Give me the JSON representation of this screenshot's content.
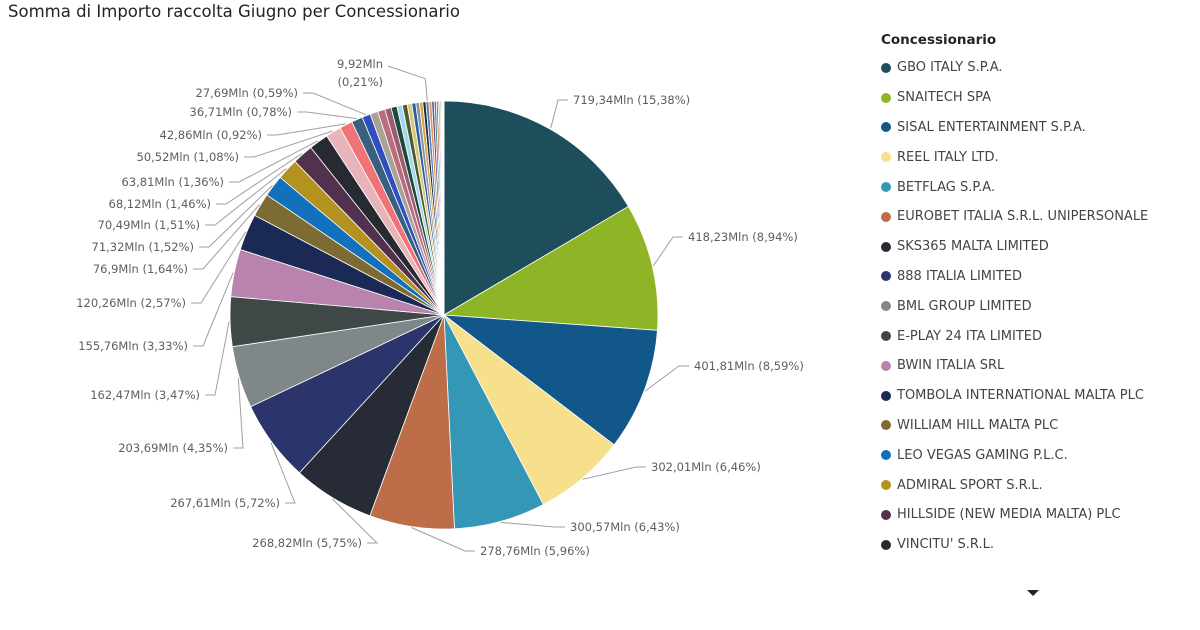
{
  "chart_data": {
    "type": "pie",
    "title": "Somma di Importo raccolta Giugno per Concessionario",
    "legend_title": "Concessionario",
    "legend_position": "right",
    "slices": [
      {
        "name": "GBO ITALY S.P.A.",
        "value": 719.34,
        "label": "719,34Mln (15,38%)",
        "color": "#1e4e5c"
      },
      {
        "name": "SNAITECH SPA",
        "value": 418.23,
        "label": "418,23Mln (8,94%)",
        "color": "#8db525"
      },
      {
        "name": "SISAL ENTERTAINMENT S.P.A.",
        "value": 401.81,
        "label": "401,81Mln (8,59%)",
        "color": "#12578a"
      },
      {
        "name": "REEL ITALY LTD.",
        "value": 302.01,
        "label": "302,01Mln (6,46%)",
        "color": "#f7e08c"
      },
      {
        "name": "BETFLAG S.P.A.",
        "value": 300.57,
        "label": "300,57Mln (6,43%)",
        "color": "#3597b6"
      },
      {
        "name": "EUROBET ITALIA S.R.L. UNIPERSONALE",
        "value": 278.76,
        "label": "278,76Mln (5,96%)",
        "color": "#bd6d48"
      },
      {
        "name": "SKS365 MALTA LIMITED",
        "value": 268.82,
        "label": "268,82Mln (5,75%)",
        "color": "#262b36"
      },
      {
        "name": "888 ITALIA LIMITED",
        "value": 267.61,
        "label": "267,61Mln (5,72%)",
        "color": "#2c346c"
      },
      {
        "name": "BML GROUP LIMITED",
        "value": 203.69,
        "label": "203,69Mln (4,35%)",
        "color": "#7f8789"
      },
      {
        "name": "E-PLAY 24 ITA LIMITED",
        "value": 162.47,
        "label": "162,47Mln (3,47%)",
        "color": "#3f4847"
      },
      {
        "name": "BWIN ITALIA SRL",
        "value": 155.76,
        "label": "155,76Mln (3,33%)",
        "color": "#b883ac"
      },
      {
        "name": "TOMBOLA INTERNATIONAL MALTA PLC",
        "value": 120.26,
        "label": "120,26Mln (2,57%)",
        "color": "#1b2a55"
      },
      {
        "name": "WILLIAM HILL MALTA PLC",
        "value": 76.9,
        "label": "76,9Mln (1,64%)",
        "color": "#7c6c33"
      },
      {
        "name": "LEO VEGAS GAMING P.L.C.",
        "value": 71.32,
        "label": "71,32Mln (1,52%)",
        "color": "#1270bd"
      },
      {
        "name": "ADMIRAL SPORT S.R.L.",
        "value": 70.49,
        "label": "70,49Mln (1,51%)",
        "color": "#b3921f"
      },
      {
        "name": "HILLSIDE (NEW MEDIA MALTA) PLC",
        "value": 68.12,
        "label": "68,12Mln (1,46%)",
        "color": "#52314f"
      },
      {
        "name": "VINCITU' S.R.L.",
        "value": 63.81,
        "label": "63,81Mln (1,36%)",
        "color": "#272a31"
      },
      {
        "name": "",
        "value": 50.52,
        "label": "50,52Mln (1,08%)",
        "color": "#e7b5b9"
      },
      {
        "name": "",
        "value": 42.86,
        "label": "42,86Mln (0,92%)",
        "color": "#f07378"
      },
      {
        "name": "",
        "value": 36.71,
        "label": "36,71Mln (0,78%)",
        "color": "#3a6080"
      },
      {
        "name": "",
        "value": 27.69,
        "label": "27,69Mln (0,59%)",
        "color": "#2f4fc0"
      },
      {
        "name": "",
        "value": 26.0,
        "label": "",
        "color": "#a9a296"
      },
      {
        "name": "",
        "value": 24.0,
        "label": "",
        "color": "#bc6c7c"
      },
      {
        "name": "",
        "value": 21.0,
        "label": "",
        "color": "#9a5e73"
      },
      {
        "name": "",
        "value": 19.0,
        "label": "",
        "color": "#1d4a3a"
      },
      {
        "name": "",
        "value": 18.0,
        "label": "",
        "color": "#a2d9f0"
      },
      {
        "name": "",
        "value": 16.0,
        "label": "",
        "color": "#4b5a2c"
      },
      {
        "name": "",
        "value": 15.0,
        "label": "",
        "color": "#d9c97a"
      },
      {
        "name": "",
        "value": 13.0,
        "label": "",
        "color": "#2c5fa0"
      },
      {
        "name": "",
        "value": 12.0,
        "label": "",
        "color": "#8d8fb0"
      },
      {
        "name": "",
        "value": 11.0,
        "label": "",
        "color": "#d4a640"
      },
      {
        "name": "",
        "value": 10.0,
        "label": "",
        "color": "#1e2b3a"
      },
      {
        "name": "",
        "value": 9.92,
        "label": "9,92Mln (0,21%)",
        "color": "#5b7fbf"
      },
      {
        "name": "",
        "value": 9.0,
        "label": "",
        "color": "#e09455"
      },
      {
        "name": "",
        "value": 8.0,
        "label": "",
        "color": "#6a4b8f"
      },
      {
        "name": "",
        "value": 7.0,
        "label": "",
        "color": "#3c8f6a"
      },
      {
        "name": "",
        "value": 6.0,
        "label": "",
        "color": "#c25a5a"
      },
      {
        "name": "",
        "value": 5.0,
        "label": "",
        "color": "#7aa0c8"
      },
      {
        "name": "",
        "value": 4.0,
        "label": "",
        "color": "#b0b347"
      },
      {
        "name": "",
        "value": 3.0,
        "label": "",
        "color": "#5a3b2a"
      },
      {
        "name": "",
        "value": 2.5,
        "label": "",
        "color": "#d97cc0"
      },
      {
        "name": "",
        "value": 2.0,
        "label": "",
        "color": "#2d6d6d"
      },
      {
        "name": "",
        "value": 1.5,
        "label": "",
        "color": "#88c057"
      },
      {
        "name": "",
        "value": 1.0,
        "label": "",
        "color": "#f2a900"
      }
    ]
  }
}
